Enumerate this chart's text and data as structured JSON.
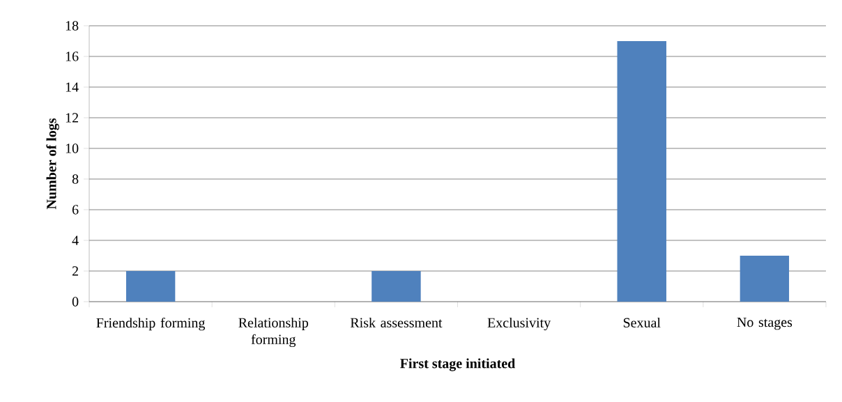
{
  "chart_data": {
    "type": "bar",
    "categories": [
      "Friendship forming",
      "Relationship forming",
      "Risk assessment",
      "Exclusivity",
      "Sexual",
      "No stages"
    ],
    "values": [
      2,
      0,
      2,
      0,
      17,
      3
    ],
    "color": "#4f81bd",
    "xlabel": "First stage initiated",
    "ylabel": "Number of logs",
    "ylim": [
      0,
      18
    ],
    "yticks": [
      0,
      2,
      4,
      6,
      8,
      10,
      12,
      14,
      16,
      18
    ],
    "grid": "y"
  }
}
